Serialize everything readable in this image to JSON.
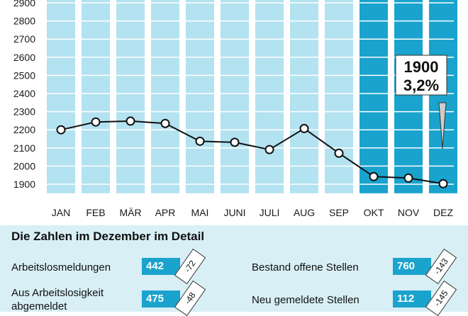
{
  "chart_data": {
    "type": "line",
    "categories": [
      "JAN",
      "FEB",
      "MÄR",
      "APR",
      "MAI",
      "JUNI",
      "JULI",
      "AUG",
      "SEP",
      "OKT",
      "NOV",
      "DEZ"
    ],
    "values": [
      2200,
      2243,
      2248,
      2235,
      2137,
      2131,
      2091,
      2207,
      2071,
      1942,
      1934,
      1903
    ],
    "y_ticks": [
      1900,
      2000,
      2100,
      2200,
      2300,
      2400,
      2500,
      2600,
      2700,
      2800,
      2900
    ],
    "ylim": [
      1850,
      2930
    ],
    "highlighted_categories": [
      "OKT",
      "NOV",
      "DEZ"
    ],
    "callout": {
      "value": "1900",
      "percent": "3,2%"
    },
    "colors": {
      "column": "#b3e2f0",
      "column_highlight": "#1aa3cc",
      "line": "#111111"
    }
  },
  "detail": {
    "title": "Die Zahlen im Dezember im Detail",
    "rows": [
      {
        "label": "Arbeitslosmeldungen",
        "value": "442",
        "change": "-72"
      },
      {
        "label": "Aus Arbeitslosigkeit abgemeldet",
        "value": "475",
        "change": "-48"
      },
      {
        "label": "Bestand offene Stellen",
        "value": "760",
        "change": "-143"
      },
      {
        "label": "Neu gemeldete Stellen",
        "value": "112",
        "change": "-145"
      }
    ]
  }
}
